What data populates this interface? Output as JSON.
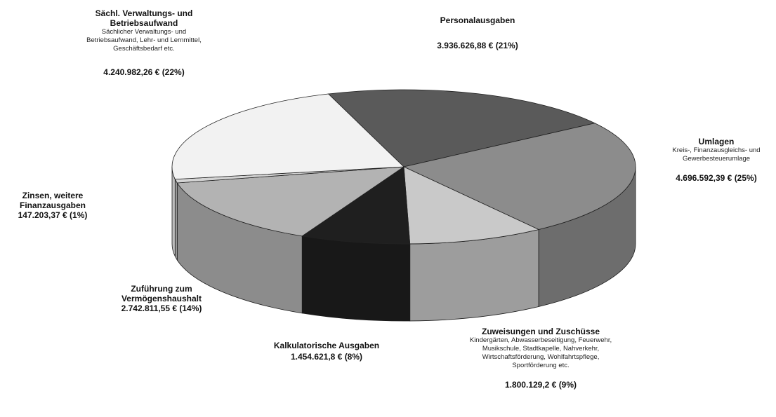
{
  "chart_data": {
    "type": "pie3d",
    "categories": [
      "Personalausgaben",
      "Umlagen",
      "Zuweisungen und Zuschüsse",
      "Kalkulatorische Ausgaben",
      "Zuführung zum Vermögenshaushalt",
      "Zinsen, weitere Finanzausgaben",
      "Sächl. Verwaltungs- und Betriebsaufwand"
    ],
    "descriptions": [
      null,
      "Kreis-, Finanzausgleichs- und Gewerbesteuerumlage",
      "Kindergärten, Abwasserbeseitigung, Feuerwehr, Musikschule, Stadtkapelle, Nahverkehr, Wirtschaftsförderung, Wohlfahrtspflege, Sportförderung etc.",
      null,
      null,
      null,
      "Sächlicher Verwaltungs- und Betriebsaufwand, Lehr- und Lernmittel, Geschäftsbedarf etc."
    ],
    "values": [
      3936626.88,
      4696592.39,
      1800129.2,
      1454621.8,
      2742811.55,
      147203.37,
      4240982.26
    ],
    "value_labels": [
      "3.936.626,88 € (21%)",
      "4.696.592,39 € (25%)",
      "1.800.129,2 € (9%)",
      "1.454.621,8 € (8%)",
      "2.742.811,55 € (14%)",
      "147.203,37 € (1%)",
      "4.240.982,26 € (22%)"
    ],
    "colors": [
      "#5a5a5a",
      "#8c8c8c",
      "#c9c9c9",
      "#1f1f1f",
      "#b3b3b3",
      "#d4d4d4",
      "#f2f2f2"
    ]
  }
}
